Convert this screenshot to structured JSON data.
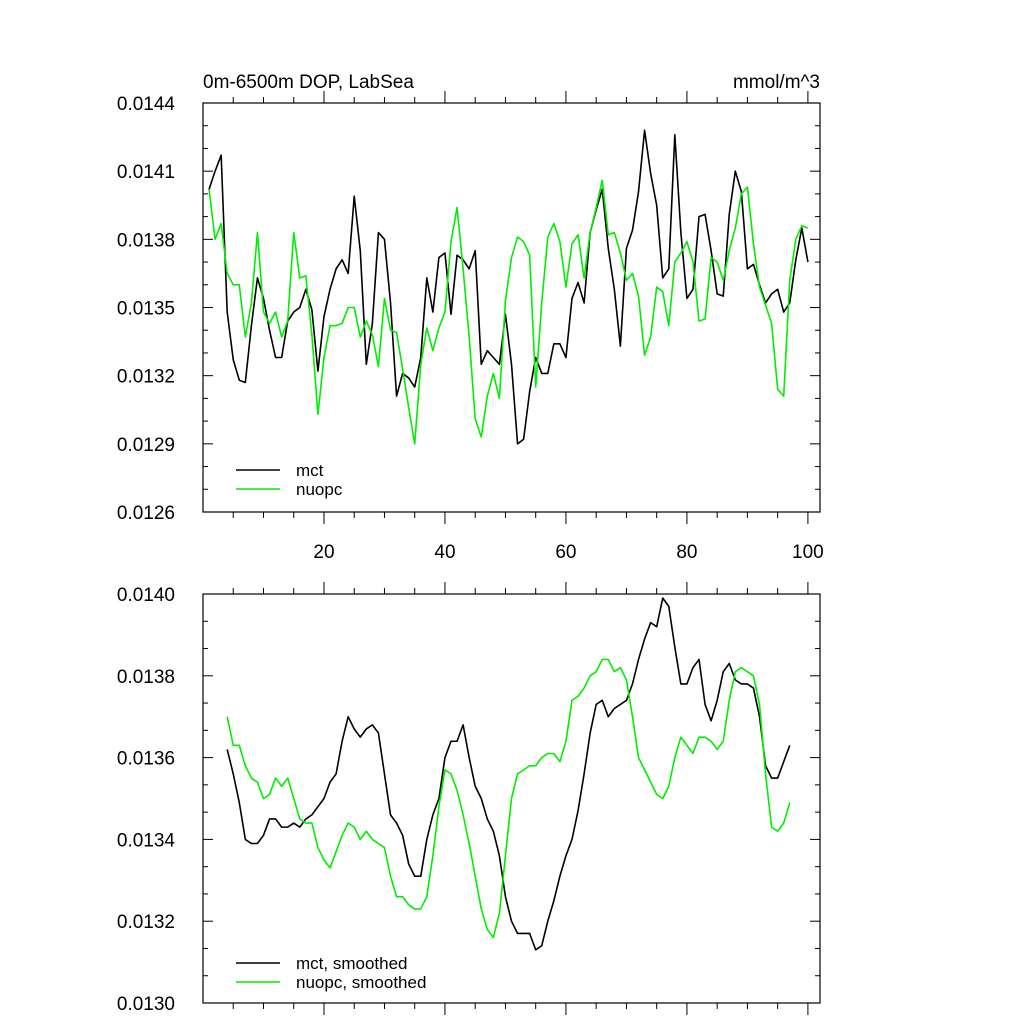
{
  "colors": {
    "mct": "#000000",
    "nuopc": "#00ee00"
  },
  "chart_data": [
    {
      "type": "line",
      "title": "0m-6500m DOP, LabSea",
      "units_label": "mmol/m^3",
      "xlim": [
        0,
        102
      ],
      "ylim": [
        0.0126,
        0.0144
      ],
      "x_ticks": [
        20,
        40,
        60,
        80,
        100
      ],
      "x_tick_labels": [
        "20",
        "40",
        "60",
        "80",
        "100"
      ],
      "y_ticks": [
        0.0126,
        0.0129,
        0.0132,
        0.0135,
        0.0138,
        0.0141,
        0.0144
      ],
      "y_tick_labels": [
        "0.0126",
        "0.0129",
        "0.0132",
        "0.0135",
        "0.0138",
        "0.0141",
        "0.0144"
      ],
      "legend_position": "bottom-left",
      "x_start": 1,
      "series": [
        {
          "name": "mct",
          "color": "#000000",
          "values": [
            0.01402,
            0.0141,
            0.01417,
            0.01348,
            0.01327,
            0.01318,
            0.01317,
            0.01342,
            0.01363,
            0.01354,
            0.0134,
            0.01328,
            0.01328,
            0.01344,
            0.01348,
            0.0135,
            0.01358,
            0.01349,
            0.01322,
            0.01346,
            0.01358,
            0.01367,
            0.01371,
            0.01365,
            0.01399,
            0.01375,
            0.01325,
            0.01343,
            0.01383,
            0.0138,
            0.01352,
            0.01311,
            0.01321,
            0.01319,
            0.01315,
            0.01328,
            0.01363,
            0.01348,
            0.01372,
            0.01374,
            0.01347,
            0.01373,
            0.01371,
            0.01367,
            0.01375,
            0.01325,
            0.01331,
            0.01328,
            0.01325,
            0.01347,
            0.01325,
            0.0129,
            0.01292,
            0.01313,
            0.01328,
            0.01321,
            0.01321,
            0.01334,
            0.01334,
            0.01328,
            0.01354,
            0.01361,
            0.01352,
            0.01383,
            0.01393,
            0.01402,
            0.01376,
            0.01358,
            0.01333,
            0.01376,
            0.01384,
            0.01401,
            0.01428,
            0.01409,
            0.01395,
            0.01363,
            0.01367,
            0.01426,
            0.01383,
            0.01354,
            0.01358,
            0.0139,
            0.01391,
            0.01375,
            0.01356,
            0.01355,
            0.01391,
            0.0141,
            0.01401,
            0.01367,
            0.01369,
            0.0136,
            0.01352,
            0.01356,
            0.01358,
            0.01348,
            0.01352,
            0.01371,
            0.01385,
            0.0137
          ]
        },
        {
          "name": "nuopc",
          "color": "#00ee00",
          "values": [
            0.01402,
            0.0138,
            0.01387,
            0.01365,
            0.0136,
            0.0136,
            0.01337,
            0.01352,
            0.01383,
            0.01348,
            0.01343,
            0.01348,
            0.01337,
            0.01344,
            0.01383,
            0.01363,
            0.01364,
            0.01338,
            0.01303,
            0.01328,
            0.01342,
            0.01342,
            0.01343,
            0.0135,
            0.0135,
            0.01337,
            0.01344,
            0.01338,
            0.01324,
            0.01354,
            0.0134,
            0.01339,
            0.01323,
            0.01306,
            0.0129,
            0.01325,
            0.01341,
            0.01331,
            0.01341,
            0.01348,
            0.01379,
            0.01394,
            0.01367,
            0.01337,
            0.01301,
            0.01293,
            0.01311,
            0.01321,
            0.0131,
            0.01353,
            0.01372,
            0.01381,
            0.01379,
            0.01373,
            0.01315,
            0.01352,
            0.01381,
            0.01387,
            0.01379,
            0.01359,
            0.01378,
            0.01382,
            0.01363,
            0.01383,
            0.01394,
            0.01406,
            0.01382,
            0.01383,
            0.01374,
            0.01362,
            0.01365,
            0.01355,
            0.01329,
            0.01337,
            0.01359,
            0.01357,
            0.01342,
            0.0137,
            0.01374,
            0.01379,
            0.0137,
            0.01344,
            0.01345,
            0.01372,
            0.0137,
            0.01362,
            0.01375,
            0.01385,
            0.014,
            0.01403,
            0.01378,
            0.01359,
            0.01351,
            0.01343,
            0.01314,
            0.01311,
            0.01362,
            0.0138,
            0.01386,
            0.01385
          ]
        }
      ]
    },
    {
      "type": "line",
      "xlim": [
        0,
        102
      ],
      "ylim": [
        0.013,
        0.014
      ],
      "x_ticks": [
        20,
        40,
        60,
        80,
        100
      ],
      "y_ticks": [
        0.013,
        0.0132,
        0.0134,
        0.0136,
        0.0138,
        0.014
      ],
      "y_tick_labels": [
        "0.0130",
        "0.0132",
        "0.0134",
        "0.0136",
        "0.0138",
        "0.0140"
      ],
      "legend_position": "bottom-left",
      "x_start": 4,
      "series": [
        {
          "name": "mct, smoothed",
          "color": "#000000",
          "values": [
            0.01362,
            0.01356,
            0.01349,
            0.0134,
            0.01339,
            0.01339,
            0.01341,
            0.01345,
            0.01345,
            0.01343,
            0.01343,
            0.01344,
            0.01343,
            0.01345,
            0.01346,
            0.01348,
            0.0135,
            0.01354,
            0.01356,
            0.01364,
            0.0137,
            0.01367,
            0.01365,
            0.01367,
            0.01368,
            0.01366,
            0.01356,
            0.01346,
            0.01344,
            0.01341,
            0.01334,
            0.01331,
            0.01331,
            0.0134,
            0.01346,
            0.0135,
            0.0136,
            0.01364,
            0.01364,
            0.01368,
            0.0136,
            0.01353,
            0.0135,
            0.01345,
            0.01342,
            0.01336,
            0.01326,
            0.0132,
            0.01317,
            0.01317,
            0.01317,
            0.01313,
            0.01314,
            0.0132,
            0.01325,
            0.01331,
            0.01336,
            0.0134,
            0.01347,
            0.01356,
            0.01366,
            0.01373,
            0.01374,
            0.0137,
            0.01372,
            0.01373,
            0.01374,
            0.01378,
            0.01384,
            0.01389,
            0.01393,
            0.01392,
            0.01399,
            0.01397,
            0.01387,
            0.01378,
            0.01378,
            0.01382,
            0.01384,
            0.01373,
            0.01369,
            0.01374,
            0.01381,
            0.01383,
            0.01379,
            0.01378,
            0.01378,
            0.01377,
            0.0137,
            0.01358,
            0.01355,
            0.01355,
            0.01359,
            0.01363
          ]
        },
        {
          "name": "nuopc, smoothed",
          "color": "#00ee00",
          "values": [
            0.0137,
            0.01363,
            0.01363,
            0.01358,
            0.01355,
            0.01354,
            0.0135,
            0.01351,
            0.01355,
            0.01353,
            0.01355,
            0.0135,
            0.01345,
            0.01344,
            0.01344,
            0.01338,
            0.01335,
            0.01333,
            0.01337,
            0.01341,
            0.01344,
            0.01343,
            0.0134,
            0.01342,
            0.0134,
            0.01339,
            0.01338,
            0.01331,
            0.01326,
            0.01326,
            0.01324,
            0.01323,
            0.01323,
            0.01326,
            0.01336,
            0.01348,
            0.01357,
            0.01356,
            0.01352,
            0.01346,
            0.01339,
            0.01331,
            0.01323,
            0.01318,
            0.01316,
            0.01322,
            0.01336,
            0.0135,
            0.01356,
            0.01357,
            0.01358,
            0.01358,
            0.0136,
            0.01361,
            0.01361,
            0.01359,
            0.01364,
            0.01374,
            0.01375,
            0.01377,
            0.0138,
            0.01381,
            0.01384,
            0.01384,
            0.01381,
            0.01382,
            0.01379,
            0.0137,
            0.0136,
            0.01357,
            0.01354,
            0.01351,
            0.0135,
            0.01353,
            0.0136,
            0.01365,
            0.01363,
            0.01361,
            0.01365,
            0.01365,
            0.01364,
            0.01362,
            0.01364,
            0.01374,
            0.01381,
            0.01382,
            0.01381,
            0.0138,
            0.01373,
            0.01356,
            0.01343,
            0.01342,
            0.01344,
            0.01349
          ]
        }
      ]
    }
  ]
}
